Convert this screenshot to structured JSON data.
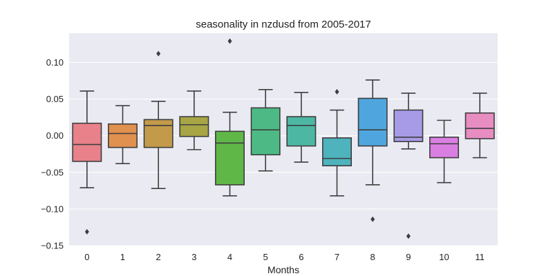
{
  "chart_data": {
    "type": "box",
    "title": "seasonality in nzdusd from 2005-2017",
    "xlabel": "Months",
    "ylabel": "",
    "ylim": [
      -0.15,
      0.14
    ],
    "yticks": [
      -0.15,
      -0.1,
      -0.05,
      0.0,
      0.05,
      0.1
    ],
    "ytick_labels": [
      "−0.15",
      "−0.10",
      "−0.05",
      "0.00",
      "0.05",
      "0.10"
    ],
    "grid": true,
    "background": "#eaeaf2",
    "categories": [
      "0",
      "1",
      "2",
      "3",
      "4",
      "5",
      "6",
      "7",
      "8",
      "9",
      "10",
      "11"
    ],
    "boxes": [
      {
        "category": "0",
        "whisker_low": -0.071,
        "q1": -0.035,
        "median": -0.012,
        "q3": 0.017,
        "whisker_high": 0.061,
        "outliers": [
          -0.131
        ],
        "color": "#e8818a"
      },
      {
        "category": "1",
        "whisker_low": -0.038,
        "q1": -0.016,
        "median": 0.003,
        "q3": 0.016,
        "whisker_high": 0.041,
        "outliers": [],
        "color": "#e0904f"
      },
      {
        "category": "2",
        "whisker_low": -0.072,
        "q1": -0.016,
        "median": 0.014,
        "q3": 0.022,
        "whisker_high": 0.047,
        "outliers": [
          0.112
        ],
        "color": "#c29a4a"
      },
      {
        "category": "3",
        "whisker_low": -0.019,
        "q1": -0.001,
        "median": 0.015,
        "q3": 0.026,
        "whisker_high": 0.061,
        "outliers": [],
        "color": "#a7a544"
      },
      {
        "category": "4",
        "whisker_low": -0.082,
        "q1": -0.067,
        "median": -0.01,
        "q3": 0.006,
        "whisker_high": 0.032,
        "outliers": [
          0.129
        ],
        "color": "#5fb747"
      },
      {
        "category": "5",
        "whisker_low": -0.048,
        "q1": -0.026,
        "median": 0.008,
        "q3": 0.038,
        "whisker_high": 0.063,
        "outliers": [],
        "color": "#4dba85"
      },
      {
        "category": "6",
        "whisker_low": -0.036,
        "q1": -0.014,
        "median": 0.014,
        "q3": 0.026,
        "whisker_high": 0.059,
        "outliers": [],
        "color": "#4db7a4"
      },
      {
        "category": "7",
        "whisker_low": -0.082,
        "q1": -0.041,
        "median": -0.031,
        "q3": -0.003,
        "whisker_high": 0.035,
        "outliers": [
          0.06
        ],
        "color": "#4eb3bd"
      },
      {
        "category": "8",
        "whisker_low": -0.067,
        "q1": -0.014,
        "median": 0.008,
        "q3": 0.051,
        "whisker_high": 0.076,
        "outliers": [
          -0.114
        ],
        "color": "#4fa6df"
      },
      {
        "category": "9",
        "whisker_low": -0.018,
        "q1": -0.008,
        "median": -0.002,
        "q3": 0.035,
        "whisker_high": 0.058,
        "outliers": [
          -0.137
        ],
        "color": "#a79ae6"
      },
      {
        "category": "10",
        "whisker_low": -0.064,
        "q1": -0.03,
        "median": -0.011,
        "q3": -0.002,
        "whisker_high": 0.021,
        "outliers": [],
        "color": "#da7fe2"
      },
      {
        "category": "11",
        "whisker_low": -0.03,
        "q1": -0.004,
        "median": 0.01,
        "q3": 0.031,
        "whisker_high": 0.058,
        "outliers": [],
        "color": "#e78dc2"
      }
    ]
  }
}
